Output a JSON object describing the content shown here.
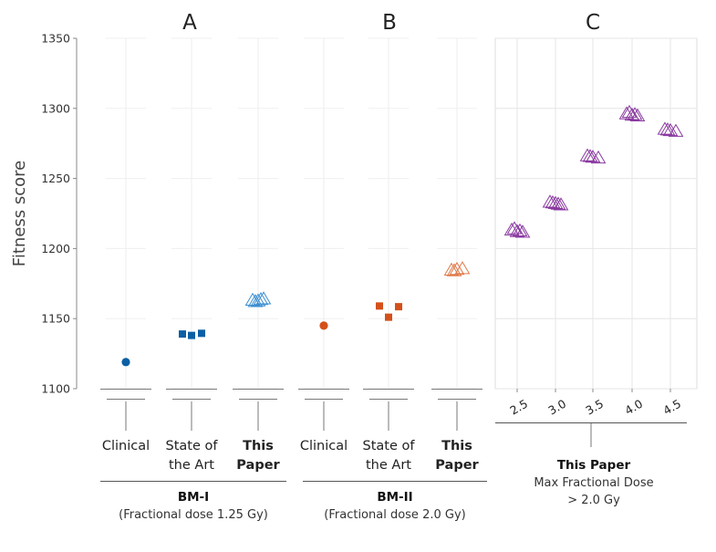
{
  "chart_data": {
    "type": "scatter",
    "ylabel": "Fitness score",
    "ylim": [
      1100,
      1350
    ],
    "yticks": [
      "1100",
      "1150",
      "1200",
      "1250",
      "1300",
      "1350"
    ],
    "yticks_values": [
      1100,
      1150,
      1200,
      1250,
      1300,
      1350
    ],
    "grid": true,
    "panels": [
      {
        "title": "A",
        "group_label": "BM-I",
        "group_sub": "(Fractional dose 1.25 Gy)",
        "categories": [
          {
            "label_lines": [
              "Clinical"
            ],
            "bold": false,
            "marker": "circle",
            "color": "#0b5fa5",
            "values": [
              1119
            ]
          },
          {
            "label_lines": [
              "State of",
              "the Art"
            ],
            "bold": false,
            "marker": "square",
            "color": "#0b5fa5",
            "values": [
              1139,
              1138,
              1139.5
            ]
          },
          {
            "label_lines": [
              "This",
              "Paper"
            ],
            "bold": true,
            "marker": "triangle",
            "color": "#3d8fd1",
            "values": [
              1162.5,
              1163,
              1164,
              1162,
              1163.5
            ]
          }
        ]
      },
      {
        "title": "B",
        "group_label": "BM-II",
        "group_sub": "(Fractional dose 2.0 Gy)",
        "categories": [
          {
            "label_lines": [
              "Clinical"
            ],
            "bold": false,
            "marker": "circle",
            "color": "#d4501a",
            "values": [
              1145
            ]
          },
          {
            "label_lines": [
              "State of",
              "the Art"
            ],
            "bold": false,
            "marker": "square",
            "color": "#d4501a",
            "values": [
              1159,
              1151,
              1158.5
            ]
          },
          {
            "label_lines": [
              "This",
              "Paper"
            ],
            "bold": true,
            "marker": "triangle",
            "color": "#e07a4a",
            "values": [
              1185,
              1184.5,
              1185.5,
              1184
            ]
          }
        ]
      },
      {
        "title": "C",
        "group_label": "This Paper",
        "group_sub_lines": [
          "Max Fractional Dose",
          "> 2.0 Gy"
        ],
        "tick_labels": [
          "2.5",
          "3.0",
          "3.5",
          "4.0",
          "4.5"
        ],
        "marker": "triangle",
        "color": "#8a3aa0",
        "series_values": [
          [
            1212,
            1213,
            1211.5,
            1214,
            1212.5
          ],
          [
            1232,
            1233,
            1231,
            1232.5,
            1231.5
          ],
          [
            1265,
            1266,
            1264.5,
            1265.5
          ],
          [
            1295,
            1296,
            1294.5,
            1297,
            1295.5
          ],
          [
            1284,
            1285,
            1283.5,
            1284.5
          ]
        ]
      }
    ]
  }
}
